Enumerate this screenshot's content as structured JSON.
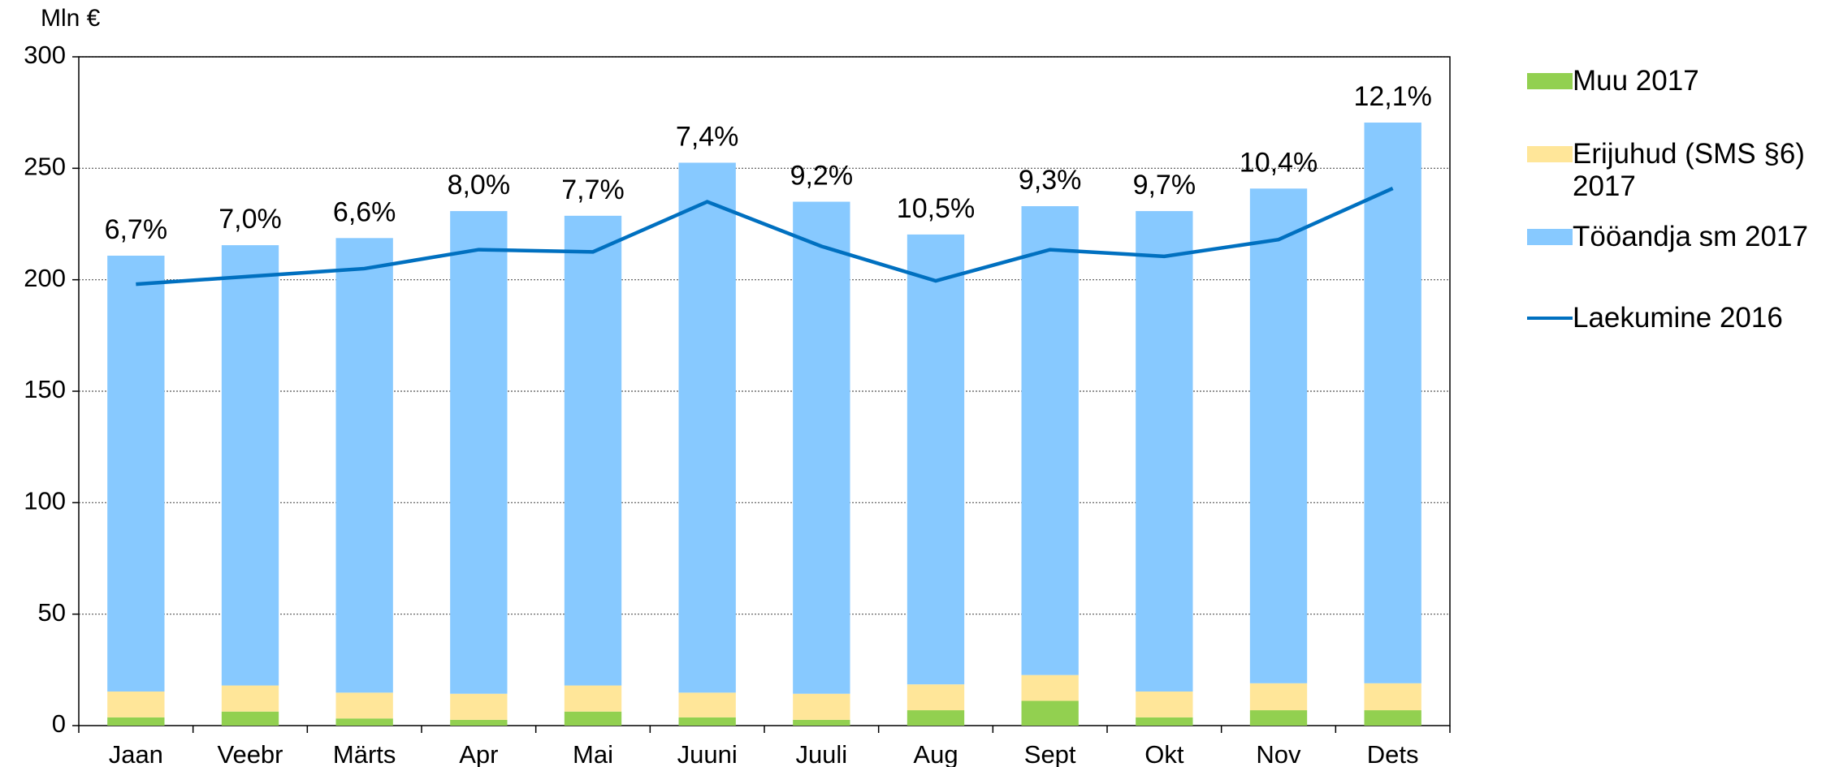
{
  "chart_data": {
    "type": "bar",
    "stacked": true,
    "y_label": "Mln €",
    "categories": [
      "Jaan",
      "Veebr",
      "Märts",
      "Apr",
      "Mai",
      "Juuni",
      "Juuli",
      "Aug",
      "Sept",
      "Okt",
      "Nov",
      "Dets"
    ],
    "series": [
      {
        "name": "Muu 2017",
        "color": "#92d050",
        "values": [
          3.7,
          6.3,
          3.2,
          2.6,
          6.3,
          3.7,
          2.6,
          6.9,
          11.1,
          3.7,
          6.9,
          6.9
        ]
      },
      {
        "name": "Erijuhud (SMS §6) 2017",
        "color": "#ffe699",
        "values": [
          11.6,
          11.7,
          11.6,
          11.7,
          11.7,
          11.1,
          11.7,
          11.6,
          11.6,
          11.6,
          12.1,
          12.1
        ]
      },
      {
        "name": "Tööandja sm 2017",
        "color": "#87c9ff",
        "values": [
          195.5,
          197.5,
          203.9,
          216.5,
          210.7,
          237.7,
          220.7,
          201.8,
          210.3,
          215.5,
          221.9,
          251.5
        ]
      },
      {
        "name": "Laekumine 2016",
        "color": "#0070c0",
        "type": "line",
        "values": [
          198,
          201.5,
          205,
          213.5,
          212.5,
          235,
          215,
          199.5,
          213.5,
          210.5,
          218,
          241
        ]
      }
    ],
    "annotations": [
      "6,7%",
      "7,0%",
      "6,6%",
      "8,0%",
      "7,7%",
      "7,4%",
      "9,2%",
      "10,5%",
      "9,3%",
      "9,7%",
      "10,4%",
      "12,1%"
    ],
    "ylim": [
      0,
      300
    ],
    "yticks": [
      0,
      50,
      100,
      150,
      200,
      250,
      300
    ],
    "grid": true
  }
}
